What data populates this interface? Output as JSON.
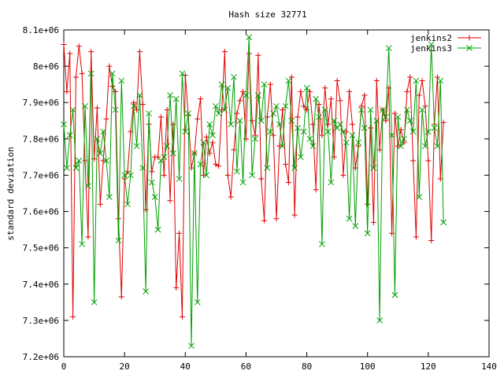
{
  "chart_data": {
    "type": "line",
    "title": "Hash size 32771",
    "xlabel": "",
    "ylabel": "standard deviation",
    "xlim": [
      0,
      140
    ],
    "ylim": [
      7200000,
      8100000
    ],
    "x_ticks": [
      0,
      20,
      40,
      60,
      80,
      100,
      120,
      140
    ],
    "x_tick_labels": [
      "0",
      "20",
      "40",
      "60",
      "80",
      "100",
      "120",
      "140"
    ],
    "y_ticks": [
      7200000,
      7300000,
      7400000,
      7500000,
      7600000,
      7700000,
      7800000,
      7900000,
      8000000,
      8100000
    ],
    "y_tick_labels": [
      "7.2e+06",
      "7.3e+06",
      "7.4e+06",
      "7.5e+06",
      "7.6e+06",
      "7.7e+06",
      "7.8e+06",
      "7.9e+06",
      "8e+06",
      "8.1e+06"
    ],
    "grid": false,
    "legend_position": "top-right",
    "series": [
      {
        "name": "jenkins2",
        "color": "#e00000",
        "marker": "plus",
        "x": [
          0,
          1,
          2,
          3,
          4,
          5,
          6,
          7,
          8,
          9,
          10,
          11,
          12,
          13,
          14,
          15,
          16,
          17,
          18,
          19,
          20,
          21,
          22,
          23,
          24,
          25,
          26,
          27,
          28,
          29,
          30,
          31,
          32,
          33,
          34,
          35,
          36,
          37,
          38,
          39,
          40,
          41,
          42,
          43,
          44,
          45,
          46,
          47,
          48,
          49,
          50,
          51,
          52,
          53,
          54,
          55,
          56,
          57,
          58,
          59,
          60,
          61,
          62,
          63,
          64,
          65,
          66,
          67,
          68,
          69,
          70,
          71,
          72,
          73,
          74,
          75,
          76,
          77,
          78,
          79,
          80,
          81,
          82,
          83,
          84,
          85,
          86,
          87,
          88,
          89,
          90,
          91,
          92,
          93,
          94,
          95,
          96,
          97,
          98,
          99,
          100,
          101,
          102,
          103,
          104,
          105,
          106,
          107,
          108,
          109,
          110,
          111,
          112,
          113,
          114,
          115,
          116,
          117,
          118,
          119,
          120,
          121,
          122,
          123,
          124,
          125
        ],
        "values": [
          8060000,
          7930000,
          8035000,
          7310000,
          7970000,
          8055000,
          7980000,
          7740000,
          7530000,
          8040000,
          7745000,
          7885000,
          7620000,
          7740000,
          7855000,
          8000000,
          7945000,
          7930000,
          7580000,
          7365000,
          7690000,
          7710000,
          7820000,
          7900000,
          7880000,
          8040000,
          7895000,
          7605000,
          7840000,
          7710000,
          7750000,
          7750000,
          7860000,
          7700000,
          7880000,
          7630000,
          7840000,
          7390000,
          7540000,
          7310000,
          7975000,
          7865000,
          7720000,
          7760000,
          7855000,
          7910000,
          7700000,
          7805000,
          7760000,
          7790000,
          7730000,
          7725000,
          7880000,
          8040000,
          7700000,
          7640000,
          7770000,
          7870000,
          7905000,
          7930000,
          7800000,
          8035000,
          7850000,
          7810000,
          8030000,
          7690000,
          7575000,
          7860000,
          7950000,
          7810000,
          7580000,
          7780000,
          7880000,
          7730000,
          7680000,
          7970000,
          7590000,
          7860000,
          7930000,
          7890000,
          7880000,
          7930000,
          7840000,
          7660000,
          7895000,
          7810000,
          7940000,
          7840000,
          7910000,
          7750000,
          7960000,
          7905000,
          7700000,
          7820000,
          7930000,
          7840000,
          7720000,
          7780000,
          7890000,
          7920000,
          7620000,
          7830000,
          7570000,
          7960000,
          7770000,
          7880000,
          7850000,
          7940000,
          7540000,
          7870000,
          7780000,
          7825000,
          7790000,
          7930000,
          7970000,
          7740000,
          7530000,
          7920000,
          7960000,
          7890000,
          7740000,
          7520000,
          7840000,
          7970000,
          7690000,
          7845000
        ]
      },
      {
        "name": "jenkins3",
        "color": "#00a000",
        "marker": "x",
        "x": [
          0,
          1,
          2,
          3,
          4,
          5,
          6,
          7,
          8,
          9,
          10,
          11,
          12,
          13,
          14,
          15,
          16,
          17,
          18,
          19,
          20,
          21,
          22,
          23,
          24,
          25,
          26,
          27,
          28,
          29,
          30,
          31,
          32,
          33,
          34,
          35,
          36,
          37,
          38,
          39,
          40,
          41,
          42,
          43,
          44,
          45,
          46,
          47,
          48,
          49,
          50,
          51,
          52,
          53,
          54,
          55,
          56,
          57,
          58,
          59,
          60,
          61,
          62,
          63,
          64,
          65,
          66,
          67,
          68,
          69,
          70,
          71,
          72,
          73,
          74,
          75,
          76,
          77,
          78,
          79,
          80,
          81,
          82,
          83,
          84,
          85,
          86,
          87,
          88,
          89,
          90,
          91,
          92,
          93,
          94,
          95,
          96,
          97,
          98,
          99,
          100,
          101,
          102,
          103,
          104,
          105,
          106,
          107,
          108,
          109,
          110,
          111,
          112,
          113,
          114,
          115,
          116,
          117,
          118,
          119,
          120,
          121,
          122,
          123,
          124,
          125
        ],
        "values": [
          7840000,
          7720000,
          7810000,
          7880000,
          7720000,
          7740000,
          7510000,
          7890000,
          7670000,
          7980000,
          7350000,
          7800000,
          7760000,
          7820000,
          7740000,
          7640000,
          7980000,
          7880000,
          7520000,
          7960000,
          7700000,
          7620000,
          7700000,
          7890000,
          7780000,
          7920000,
          7720000,
          7380000,
          7870000,
          7680000,
          7640000,
          7550000,
          7740000,
          7750000,
          7780000,
          7920000,
          7760000,
          7910000,
          7690000,
          7980000,
          7820000,
          7870000,
          7230000,
          7760000,
          7350000,
          7730000,
          7790000,
          7700000,
          7840000,
          7810000,
          7890000,
          7870000,
          7950000,
          7880000,
          7940000,
          7840000,
          7970000,
          7710000,
          7850000,
          7680000,
          7920000,
          8080000,
          7700000,
          7800000,
          7920000,
          7850000,
          7950000,
          7720000,
          7820000,
          7870000,
          7890000,
          7840000,
          7780000,
          7890000,
          7960000,
          7850000,
          7720000,
          7830000,
          7750000,
          7820000,
          7940000,
          7800000,
          7780000,
          7910000,
          7860000,
          7510000,
          7880000,
          7820000,
          7680000,
          7850000,
          7830000,
          7840000,
          7820000,
          7790000,
          7580000,
          7810000,
          7560000,
          7790000,
          7880000,
          7830000,
          7540000,
          7880000,
          7720000,
          7850000,
          7300000,
          7880000,
          7860000,
          8050000,
          7810000,
          7370000,
          7860000,
          7780000,
          7800000,
          7880000,
          7850000,
          7820000,
          7960000,
          7640000,
          7880000,
          7780000,
          7820000,
          8060000,
          7830000,
          7780000,
          7960000,
          7570000
        ]
      }
    ]
  }
}
